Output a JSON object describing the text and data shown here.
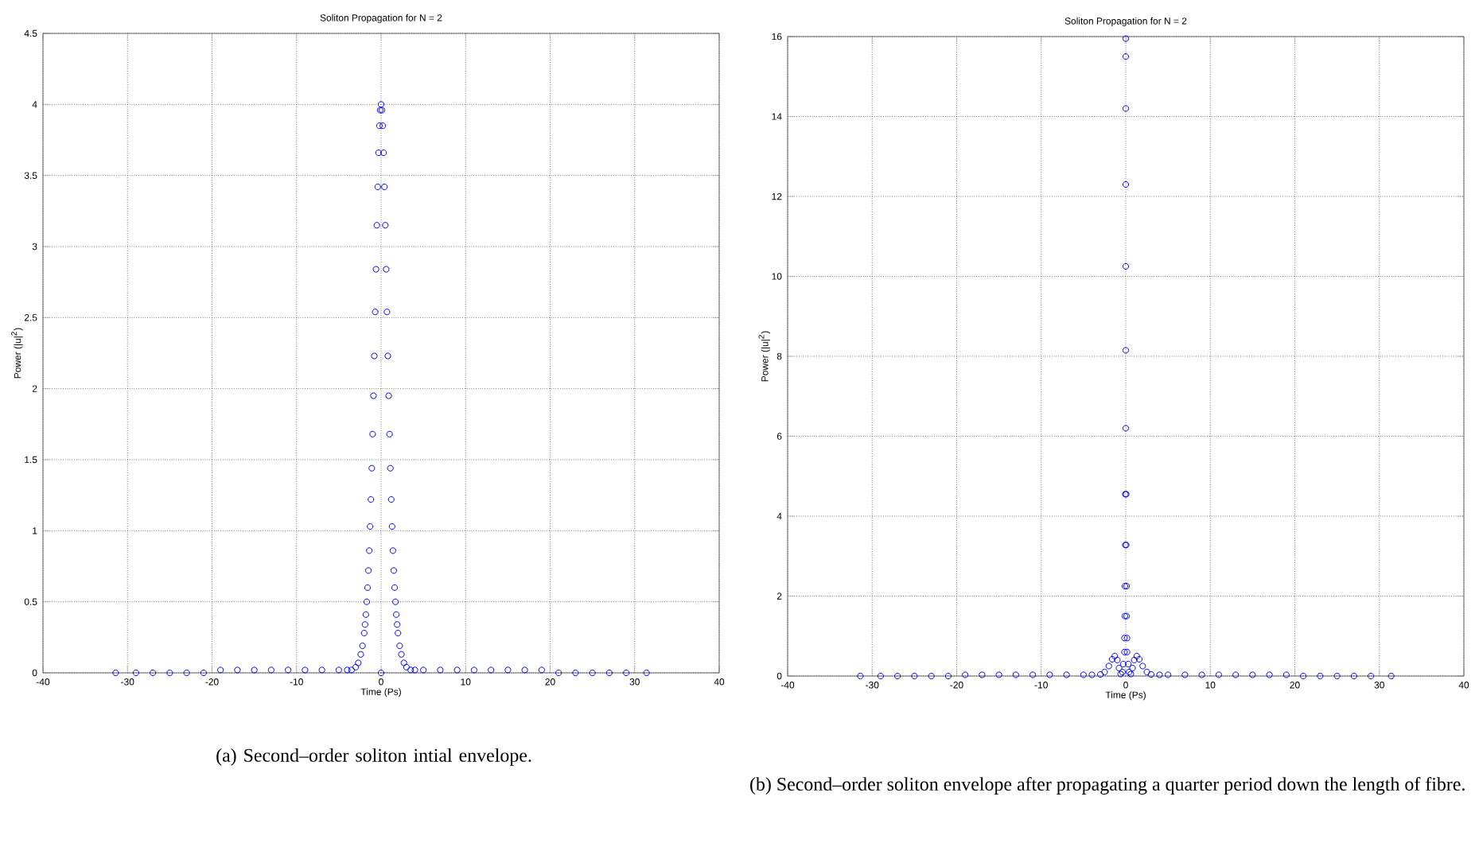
{
  "chart_data": [
    {
      "type": "scatter",
      "title": "Soliton Propagation for N = 2",
      "xlabel": "Time (Ps)",
      "ylabel": "Power (|u|$^{2}$)",
      "annotations": [
        "(a) Second–order soliton intial envelope."
      ],
      "x": [
        -31.4,
        -29,
        -27,
        -25,
        -23,
        -21,
        -19,
        -17,
        -15,
        -13,
        -11,
        -9,
        -7,
        -5,
        -4,
        -3.5,
        -3,
        -2.7,
        -2.4,
        -2.2,
        -2,
        -1.9,
        -1.8,
        -1.7,
        -1.6,
        -1.5,
        -1.4,
        -1.3,
        -1.2,
        -1.1,
        -1,
        -0.9,
        -0.8,
        -0.7,
        -0.6,
        -0.5,
        -0.4,
        -0.3,
        -0.2,
        -0.1,
        0,
        0,
        0.1,
        0.2,
        0.3,
        0.4,
        0.5,
        0.6,
        0.7,
        0.8,
        0.9,
        1,
        1.1,
        1.2,
        1.3,
        1.4,
        1.5,
        1.6,
        1.7,
        1.8,
        1.9,
        2,
        2.2,
        2.4,
        2.7,
        3,
        3.5,
        4,
        5,
        7,
        9,
        11,
        13,
        15,
        17,
        19,
        21,
        23,
        25,
        27,
        29,
        31.4
      ],
      "values": [
        0,
        0,
        0,
        0,
        0,
        0,
        0.02,
        0.02,
        0.02,
        0.02,
        0.02,
        0.02,
        0.02,
        0.02,
        0.02,
        0.02,
        0.04,
        0.07,
        0.13,
        0.19,
        0.28,
        0.34,
        0.41,
        0.5,
        0.6,
        0.72,
        0.86,
        1.03,
        1.22,
        1.44,
        1.68,
        1.95,
        2.23,
        2.54,
        2.84,
        3.15,
        3.42,
        3.66,
        3.85,
        3.96,
        4.0,
        0,
        3.96,
        3.85,
        3.66,
        3.42,
        3.15,
        2.84,
        2.54,
        2.23,
        1.95,
        1.68,
        1.44,
        1.22,
        1.03,
        0.86,
        0.72,
        0.6,
        0.5,
        0.41,
        0.34,
        0.28,
        0.19,
        0.13,
        0.07,
        0.04,
        0.02,
        0.02,
        0.02,
        0.02,
        0.02,
        0.02,
        0.02,
        0.02,
        0.02,
        0.02,
        0,
        0,
        0,
        0,
        0,
        0
      ],
      "color": "#0000ff",
      "marker": "circle",
      "grid": true,
      "xlim": [
        -40,
        40
      ],
      "ylim": [
        0,
        4.5
      ],
      "xticks": [
        -40,
        -30,
        -20,
        -10,
        0,
        10,
        20,
        30,
        40
      ],
      "yticks": [
        0,
        0.5,
        1,
        1.5,
        2,
        2.5,
        3,
        3.5,
        4,
        4.5
      ]
    },
    {
      "type": "scatter",
      "title": "Soliton Propagation for N = 2",
      "xlabel": "Time (Ps)",
      "ylabel": "Power (|u|$^{2}$)",
      "annotations": [
        "(b) Second–order soliton envelope after propagating a quarter period down the length of fibre."
      ],
      "x": [
        -31.4,
        -29,
        -27,
        -25,
        -23,
        -21,
        -19,
        -17,
        -15,
        -13,
        -11,
        -9,
        -7,
        -5,
        -4,
        -3,
        -2.5,
        -2,
        -1.6,
        -1.3,
        -1,
        -0.8,
        -0.6,
        -0.4,
        -0.3,
        -0.15,
        -0.15,
        -0.1,
        -0.1,
        -0.05,
        -0.05,
        0,
        0,
        0,
        0,
        0,
        0,
        0,
        0.05,
        0.05,
        0.1,
        0.1,
        0.15,
        0.15,
        0.3,
        0.4,
        0.6,
        0.8,
        1,
        1.3,
        1.6,
        2,
        2.5,
        3,
        4,
        5,
        7,
        9,
        11,
        13,
        15,
        17,
        19,
        21,
        23,
        25,
        27,
        29,
        31.4
      ],
      "values": [
        0,
        0,
        0,
        0,
        0,
        0,
        0.03,
        0.03,
        0.03,
        0.03,
        0.03,
        0.03,
        0.03,
        0.03,
        0.03,
        0.04,
        0.1,
        0.25,
        0.42,
        0.5,
        0.4,
        0.2,
        0.05,
        0.1,
        0.3,
        0.6,
        0.95,
        1.5,
        2.25,
        3.28,
        4.55,
        6.2,
        8.15,
        10.25,
        12.3,
        14.2,
        15.5,
        15.95,
        4.55,
        3.28,
        2.25,
        1.5,
        0.95,
        0.6,
        0.3,
        0.1,
        0.05,
        0.2,
        0.4,
        0.5,
        0.42,
        0.25,
        0.1,
        0.04,
        0.03,
        0.03,
        0.03,
        0.03,
        0.03,
        0.03,
        0.03,
        0.03,
        0.03,
        0,
        0,
        0,
        0,
        0,
        0
      ],
      "color": "#0000ff",
      "marker": "circle",
      "grid": true,
      "xlim": [
        -40,
        40
      ],
      "ylim": [
        0,
        16
      ],
      "xticks": [
        -40,
        -30,
        -20,
        -10,
        0,
        10,
        20,
        30,
        40
      ],
      "yticks": [
        0,
        2,
        4,
        6,
        8,
        10,
        12,
        14,
        16
      ]
    }
  ]
}
